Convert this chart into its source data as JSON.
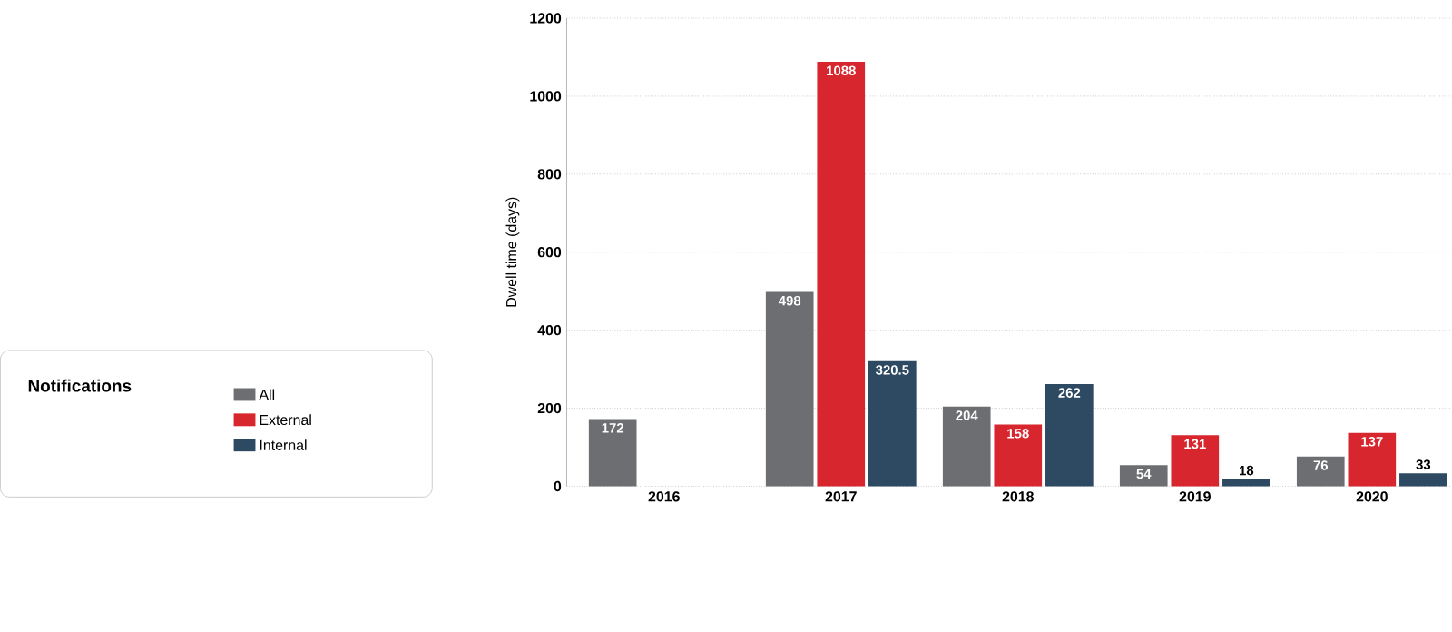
{
  "chart_data": {
    "type": "bar",
    "ylabel": "Dwell time (days)",
    "legend_title": "Notifications",
    "categories": [
      "2016",
      "2017",
      "2018",
      "2019",
      "2020"
    ],
    "series": [
      {
        "name": "All",
        "color": "#6d6e71",
        "values": [
          172,
          498,
          204,
          54,
          76
        ]
      },
      {
        "name": "External",
        "color": "#d7262e",
        "values": [
          null,
          1088,
          158,
          131,
          137
        ]
      },
      {
        "name": "Internal",
        "color": "#2e4a62",
        "values": [
          null,
          320.5,
          262,
          18,
          33
        ]
      }
    ],
    "ylim": [
      0,
      1200
    ],
    "yticks": [
      0,
      200,
      400,
      600,
      800,
      1000,
      1200
    ],
    "grid": "y",
    "legend": "left",
    "data_labels": true
  }
}
